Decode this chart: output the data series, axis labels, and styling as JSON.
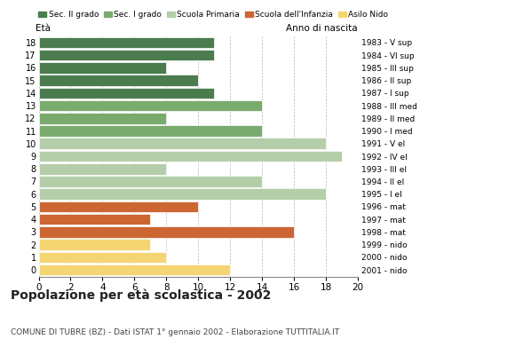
{
  "ages": [
    18,
    17,
    16,
    15,
    14,
    13,
    12,
    11,
    10,
    9,
    8,
    7,
    6,
    5,
    4,
    3,
    2,
    1,
    0
  ],
  "values": [
    11,
    11,
    8,
    10,
    11,
    14,
    8,
    14,
    18,
    19,
    8,
    14,
    18,
    10,
    7,
    16,
    7,
    8,
    12
  ],
  "categories": [
    "Sec. II grado",
    "Sec. I grado",
    "Scuola Primaria",
    "Scuola dell'Infanzia",
    "Asilo Nido"
  ],
  "bar_colors": [
    "#4a7c4e",
    "#7aab6e",
    "#b5ceaa",
    "#cc6633",
    "#f5d472"
  ],
  "age_category": [
    0,
    0,
    0,
    0,
    0,
    1,
    1,
    1,
    2,
    2,
    2,
    2,
    2,
    3,
    3,
    3,
    4,
    4,
    4
  ],
  "right_labels": [
    "1983 - V sup",
    "1984 - VI sup",
    "1985 - III sup",
    "1986 - II sup",
    "1987 - I sup",
    "1988 - III med",
    "1989 - II med",
    "1990 - I med",
    "1991 - V el",
    "1992 - IV el",
    "1993 - III el",
    "1994 - II el",
    "1995 - I el",
    "1996 - mat",
    "1997 - mat",
    "1998 - mat",
    "1999 - nido",
    "2000 - nido",
    "2001 - nido"
  ],
  "title": "Popolazione per età scolastica - 2002",
  "subtitle": "COMUNE DI TUBRE (BZ) - Dati ISTAT 1° gennaio 2002 - Elaborazione TUTTITALIA.IT",
  "xlabel_left": "Età",
  "xlabel_right": "Anno di nascita",
  "xlim": [
    0,
    20
  ],
  "xticks": [
    0,
    2,
    4,
    6,
    8,
    10,
    12,
    14,
    16,
    18,
    20
  ],
  "background_color": "#ffffff",
  "grid_color": "#999999"
}
